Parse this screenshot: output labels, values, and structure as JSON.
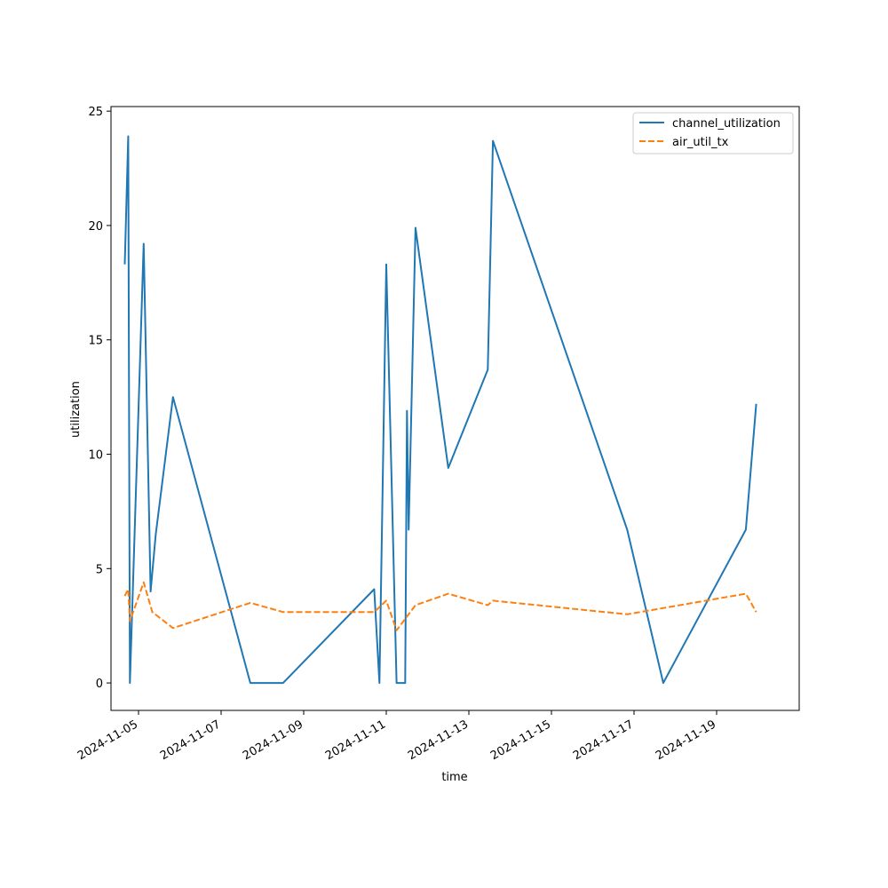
{
  "chart_data": {
    "type": "line",
    "xlabel": "time",
    "ylabel": "utilization",
    "xlim": [
      "2024-11-04 08:00",
      "2024-11-21 00:00"
    ],
    "ylim": [
      -1.2,
      25.2
    ],
    "x_ticks": [
      "2024-11-05",
      "2024-11-07",
      "2024-11-09",
      "2024-11-11",
      "2024-11-13",
      "2024-11-15",
      "2024-11-17",
      "2024-11-19"
    ],
    "y_ticks": [
      0,
      5,
      10,
      15,
      20,
      25
    ],
    "grid": false,
    "legend_position": "top-right",
    "series": [
      {
        "name": "channel_utilization",
        "color": "#1f77b4",
        "style": "solid",
        "points": [
          [
            "2024-11-04 16:00",
            18.3
          ],
          [
            "2024-11-04 18:00",
            23.9
          ],
          [
            "2024-11-04 19:00",
            0.0
          ],
          [
            "2024-11-05 00:00",
            12.0
          ],
          [
            "2024-11-05 03:00",
            19.2
          ],
          [
            "2024-11-05 07:00",
            4.0
          ],
          [
            "2024-11-05 10:00",
            6.5
          ],
          [
            "2024-11-05 20:00",
            12.5
          ],
          [
            "2024-11-07 17:00",
            0.0
          ],
          [
            "2024-11-08 12:00",
            0.0
          ],
          [
            "2024-11-10 17:00",
            4.1
          ],
          [
            "2024-11-10 20:00",
            0.0
          ],
          [
            "2024-11-11 00:00",
            18.3
          ],
          [
            "2024-11-11 06:00",
            0.0
          ],
          [
            "2024-11-11 11:00",
            0.0
          ],
          [
            "2024-11-11 12:00",
            11.9
          ],
          [
            "2024-11-11 13:00",
            6.7
          ],
          [
            "2024-11-11 17:00",
            19.9
          ],
          [
            "2024-11-12 12:00",
            9.4
          ],
          [
            "2024-11-13 11:00",
            13.7
          ],
          [
            "2024-11-13 14:00",
            23.7
          ],
          [
            "2024-11-16 20:00",
            6.7
          ],
          [
            "2024-11-17 17:00",
            0.0
          ],
          [
            "2024-11-19 17:00",
            6.7
          ],
          [
            "2024-11-19 23:00",
            12.2
          ]
        ]
      },
      {
        "name": "air_util_tx",
        "color": "#ff7f0e",
        "style": "dashed",
        "points": [
          [
            "2024-11-04 16:00",
            3.8
          ],
          [
            "2024-11-04 18:00",
            4.1
          ],
          [
            "2024-11-04 19:00",
            2.7
          ],
          [
            "2024-11-05 03:00",
            4.4
          ],
          [
            "2024-11-05 08:00",
            3.1
          ],
          [
            "2024-11-05 20:00",
            2.4
          ],
          [
            "2024-11-07 17:00",
            3.5
          ],
          [
            "2024-11-08 12:00",
            3.1
          ],
          [
            "2024-11-10 17:00",
            3.1
          ],
          [
            "2024-11-11 00:00",
            3.6
          ],
          [
            "2024-11-11 06:00",
            2.3
          ],
          [
            "2024-11-11 17:00",
            3.4
          ],
          [
            "2024-11-12 12:00",
            3.9
          ],
          [
            "2024-11-13 11:00",
            3.4
          ],
          [
            "2024-11-13 14:00",
            3.6
          ],
          [
            "2024-11-16 20:00",
            3.0
          ],
          [
            "2024-11-19 17:00",
            3.9
          ],
          [
            "2024-11-19 23:00",
            3.1
          ]
        ]
      }
    ]
  }
}
